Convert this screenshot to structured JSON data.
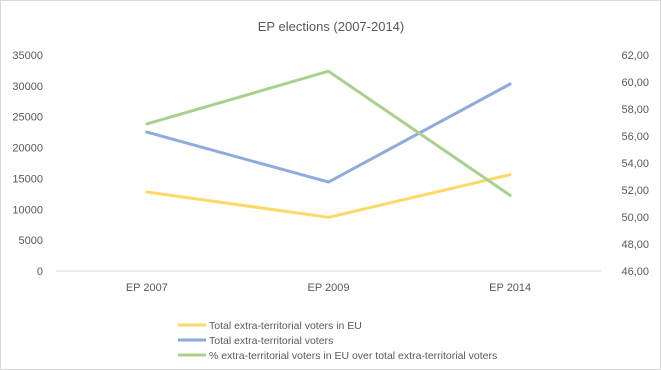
{
  "chart_data": {
    "type": "line",
    "title": "EP elections (2007-2014)",
    "categories": [
      "EP 2007",
      "EP 2009",
      "EP 2014"
    ],
    "y_left": {
      "ticks": [
        "0",
        "5000",
        "10000",
        "15000",
        "20000",
        "25000",
        "30000",
        "35000"
      ],
      "range": [
        0,
        35000
      ]
    },
    "y_right": {
      "ticks": [
        "46,00",
        "48,00",
        "50,00",
        "52,00",
        "54,00",
        "56,00",
        "58,00",
        "60,00",
        "62,00"
      ],
      "range": [
        46,
        62
      ]
    },
    "series": [
      {
        "name": "Total extra-territorial voters in EU",
        "axis": "left",
        "color": "#ffd966",
        "values": [
          12800,
          8700,
          15600
        ]
      },
      {
        "name": "Total extra-territorial voters",
        "axis": "left",
        "color": "#8faadc",
        "values": [
          22500,
          14400,
          30300
        ]
      },
      {
        "name": "% extra-territorial voters  in EU over total extra-territorial voters",
        "axis": "right",
        "color": "#a9d18e",
        "values": [
          56.9,
          60.8,
          51.6
        ]
      }
    ],
    "legend_position": "bottom-left",
    "grid": false
  }
}
